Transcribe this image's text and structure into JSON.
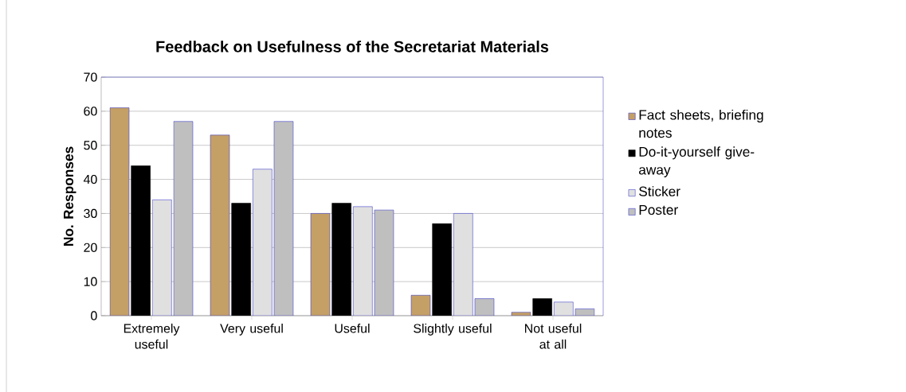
{
  "chart_data": {
    "type": "bar",
    "title": "Feedback on Usefulness of the Secretariat Materials",
    "ylabel": "No. Responses",
    "categories": [
      "Extremely useful",
      "Very useful",
      "Useful",
      "Slightly useful",
      "Not useful at all"
    ],
    "series": [
      {
        "name": "Fact sheets, briefing notes",
        "color": "#c4a066",
        "values": [
          61,
          53,
          30,
          6,
          1
        ]
      },
      {
        "name": "Do-it-yourself give-away",
        "color": "#000000",
        "values": [
          44,
          33,
          33,
          27,
          5
        ]
      },
      {
        "name": "Sticker",
        "color": "#e0e0e0",
        "values": [
          34,
          43,
          32,
          30,
          4
        ]
      },
      {
        "name": "Poster",
        "color": "#bfbfbf",
        "values": [
          57,
          57,
          31,
          5,
          2
        ]
      }
    ],
    "ylim": [
      0,
      70
    ],
    "yticks": [
      0,
      10,
      20,
      30,
      40,
      50,
      60,
      70
    ],
    "grid": "y",
    "legend": "right"
  }
}
